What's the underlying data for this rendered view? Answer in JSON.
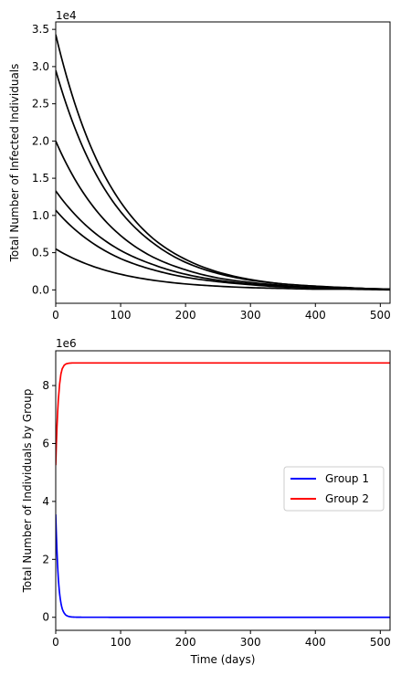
{
  "chart_data": [
    {
      "type": "line",
      "xlabel": "",
      "ylabel": "Total Number of Infected Individuals",
      "offset_label": "1e4",
      "xlim": [
        0,
        515
      ],
      "ylim": [
        -0.18,
        3.6
      ],
      "xticks": [
        0,
        100,
        200,
        300,
        400,
        500
      ],
      "yticks": [
        0.0,
        0.5,
        1.0,
        1.5,
        2.0,
        2.5,
        3.0,
        3.5
      ],
      "ytick_labels": [
        "0.0",
        "0.5",
        "1.0",
        "1.5",
        "2.0",
        "2.5",
        "3.0",
        "3.5"
      ],
      "grid": false,
      "line_color": "#000000",
      "x": [
        0,
        50,
        100,
        150,
        200,
        250,
        300,
        350,
        400,
        450,
        515
      ],
      "series": [
        {
          "values": [
            3.43,
            2.01,
            1.18,
            0.69,
            0.41,
            0.24,
            0.14,
            0.08,
            0.05,
            0.03,
            0.01
          ]
        },
        {
          "values": [
            2.95,
            1.76,
            1.05,
            0.63,
            0.37,
            0.22,
            0.13,
            0.08,
            0.05,
            0.03,
            0.01
          ]
        },
        {
          "values": [
            2.0,
            1.21,
            0.73,
            0.44,
            0.27,
            0.16,
            0.1,
            0.06,
            0.03,
            0.02,
            0.01
          ]
        },
        {
          "values": [
            1.33,
            0.84,
            0.53,
            0.34,
            0.21,
            0.13,
            0.08,
            0.05,
            0.03,
            0.02,
            0.01
          ]
        },
        {
          "values": [
            1.07,
            0.67,
            0.42,
            0.27,
            0.17,
            0.11,
            0.07,
            0.04,
            0.03,
            0.02,
            0.01
          ]
        },
        {
          "values": [
            0.55,
            0.34,
            0.21,
            0.13,
            0.08,
            0.05,
            0.03,
            0.02,
            0.01,
            0.01,
            0.0
          ]
        }
      ]
    },
    {
      "type": "line",
      "xlabel": "Time (days)",
      "ylabel": "Total Number of Individuals by Group",
      "offset_label": "1e6",
      "xlim": [
        0,
        515
      ],
      "ylim": [
        -0.45,
        9.2
      ],
      "xticks": [
        0,
        100,
        200,
        300,
        400,
        500
      ],
      "yticks": [
        0,
        2,
        4,
        6,
        8
      ],
      "ytick_labels": [
        "0",
        "2",
        "4",
        "6",
        "8"
      ],
      "grid": false,
      "legend_position": "center-right",
      "x": [
        0,
        1,
        2,
        3,
        4,
        6,
        8,
        10,
        13,
        16,
        20,
        25,
        30,
        40,
        60,
        100,
        200,
        300,
        400,
        515
      ],
      "series": [
        {
          "name": "Group 1",
          "color": "#0000ff",
          "values": [
            3.55,
            2.85,
            2.25,
            1.75,
            1.35,
            0.82,
            0.5,
            0.3,
            0.15,
            0.07,
            0.03,
            0.01,
            0.005,
            0.002,
            0.001,
            0.0,
            0.0,
            0.0,
            0.0,
            0.0
          ]
        },
        {
          "name": "Group 2",
          "color": "#ff0000",
          "values": [
            5.25,
            6.0,
            6.6,
            7.1,
            7.5,
            8.05,
            8.4,
            8.58,
            8.7,
            8.75,
            8.77,
            8.78,
            8.78,
            8.78,
            8.78,
            8.78,
            8.78,
            8.78,
            8.78,
            8.78
          ]
        }
      ]
    }
  ]
}
